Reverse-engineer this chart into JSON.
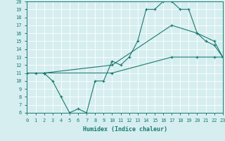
{
  "xlabel": "Humidex (Indice chaleur)",
  "bg_color": "#d6eef0",
  "line_color": "#1a7a6e",
  "grid_color": "#ffffff",
  "xlim": [
    0,
    23
  ],
  "ylim": [
    6,
    20
  ],
  "line1_x": [
    0,
    1,
    2,
    3,
    4,
    5,
    6,
    7,
    8,
    9,
    10,
    11,
    12,
    13,
    14,
    15,
    16,
    17,
    18,
    19,
    20,
    21,
    22,
    23
  ],
  "line1_y": [
    11,
    11,
    11,
    10,
    8,
    6,
    6.5,
    6,
    10,
    10,
    12.5,
    12,
    13,
    15,
    19,
    19,
    20,
    20,
    19,
    19,
    16,
    15,
    14.5,
    13
  ],
  "line2_x": [
    0,
    2,
    10,
    17,
    20,
    22,
    23
  ],
  "line2_y": [
    11,
    11,
    12,
    17,
    16,
    15,
    13
  ],
  "line3_x": [
    0,
    2,
    10,
    17,
    20,
    22,
    23
  ],
  "line3_y": [
    11,
    11,
    11,
    13,
    13,
    13,
    13
  ]
}
